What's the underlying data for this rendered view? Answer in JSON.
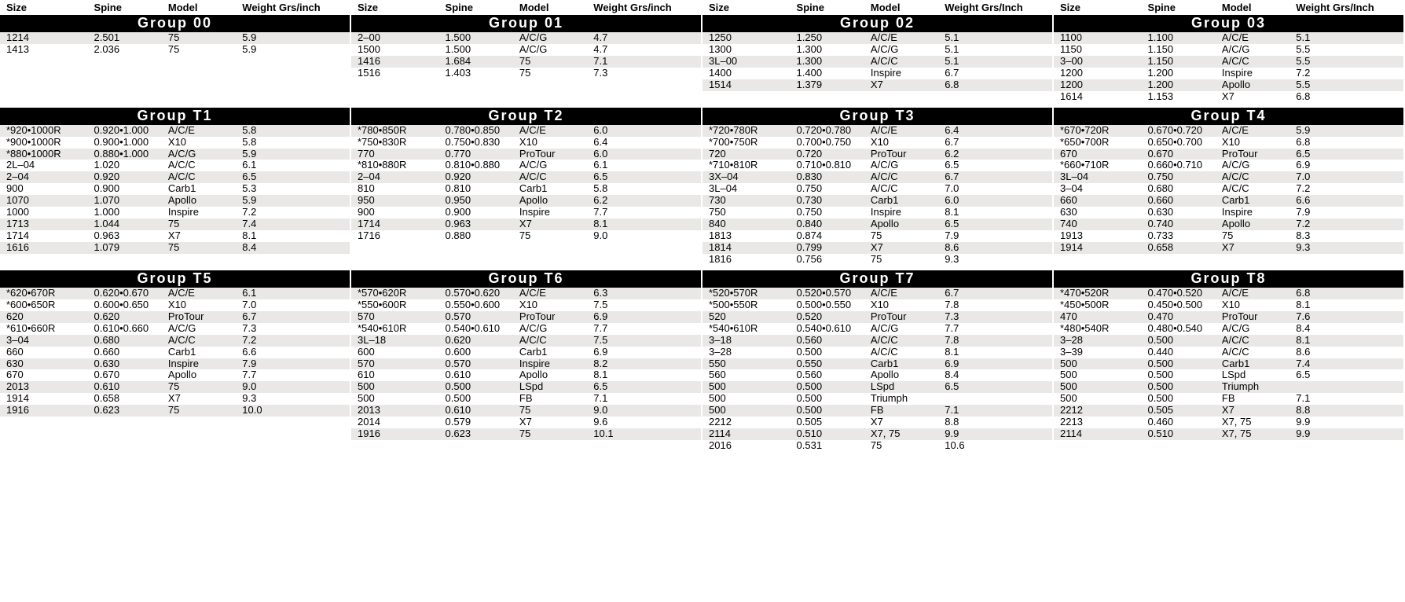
{
  "columns": [
    "Size",
    "Spine",
    "Model",
    "Weight Grs/inch"
  ],
  "columns_alt": [
    "Size",
    "Spine",
    "Model",
    "Weight Grs/Inch"
  ],
  "band1": [
    {
      "title": "Group 00",
      "rows": [
        [
          "1214",
          "2.501",
          "75",
          "5.9"
        ],
        [
          "1413",
          "2.036",
          "75",
          "5.9"
        ]
      ]
    },
    {
      "title": "Group 01",
      "rows": [
        [
          "2–00",
          "1.500",
          "A/C/G",
          "4.7"
        ],
        [
          "1500",
          "1.500",
          "A/C/G",
          "4.7"
        ],
        [
          "1416",
          "1.684",
          "75",
          "7.1"
        ],
        [
          "1516",
          "1.403",
          "75",
          "7.3"
        ]
      ]
    },
    {
      "title": "Group 02",
      "rows": [
        [
          "1250",
          "1.250",
          "A/C/E",
          "5.1"
        ],
        [
          "1300",
          "1.300",
          "A/C/G",
          "5.1"
        ],
        [
          "3L–00",
          "1.300",
          "A/C/C",
          "5.1"
        ],
        [
          "1400",
          "1.400",
          "Inspire",
          "6.7"
        ],
        [
          "1514",
          "1.379",
          "X7",
          "6.8"
        ],
        [
          "",
          "",
          "",
          ""
        ]
      ]
    },
    {
      "title": "Group 03",
      "rows": [
        [
          "1100",
          "1.100",
          "A/C/E",
          "5.1"
        ],
        [
          "1150",
          "1.150",
          "A/C/G",
          "5.5"
        ],
        [
          "3–00",
          "1.150",
          "A/C/C",
          "5.5"
        ],
        [
          "1200",
          "1.200",
          "Inspire",
          "7.2"
        ],
        [
          "1200",
          "1.200",
          "Apollo",
          "5.5"
        ],
        [
          "1614",
          "1.153",
          "X7",
          "6.8"
        ]
      ]
    }
  ],
  "band2": [
    {
      "title": "Group T1",
      "rows": [
        [
          "*920•1000R",
          "0.920•1.000",
          "A/C/E",
          "5.8"
        ],
        [
          "*900•1000R",
          "0.900•1.000",
          "X10",
          "5.8"
        ],
        [
          "*880•1000R",
          "0.880•1.000",
          "A/C/G",
          "5.9"
        ],
        [
          "2L–04",
          "1.020",
          "A/C/C",
          "6.1"
        ],
        [
          "2–04",
          "0.920",
          "A/C/C",
          "6.5"
        ],
        [
          "900",
          "0.900",
          "Carb1",
          "5.3"
        ],
        [
          "1070",
          "1.070",
          "Apollo",
          "5.9"
        ],
        [
          "1000",
          "1.000",
          "Inspire",
          "7.2"
        ],
        [
          "1713",
          "1.044",
          "75",
          "7.4"
        ],
        [
          "1714",
          "0.963",
          "X7",
          "8.1"
        ],
        [
          "1616",
          "1.079",
          "75",
          "8.4"
        ]
      ]
    },
    {
      "title": "Group T2",
      "rows": [
        [
          "*780•850R",
          "0.780•0.850",
          "A/C/E",
          "6.0"
        ],
        [
          "*750•830R",
          "0.750•0.830",
          "X10",
          "6.4"
        ],
        [
          "770",
          "0.770",
          "ProTour",
          "6.0"
        ],
        [
          "*810•880R",
          "0.810•0.880",
          "A/C/G",
          "6.1"
        ],
        [
          "2–04",
          "0.920",
          "A/C/C",
          "6.5"
        ],
        [
          "810",
          "0.810",
          "Carb1",
          "5.8"
        ],
        [
          "950",
          "0.950",
          "Apollo",
          "6.2"
        ],
        [
          "900",
          "0.900",
          "Inspire",
          "7.7"
        ],
        [
          "1714",
          "0.963",
          "X7",
          "8.1"
        ],
        [
          "1716",
          "0.880",
          "75",
          "9.0"
        ]
      ]
    },
    {
      "title": "Group T3",
      "rows": [
        [
          "*720•780R",
          "0.720•0.780",
          "A/C/E",
          "6.4"
        ],
        [
          "*700•750R",
          "0.700•0.750",
          "X10",
          "6.7"
        ],
        [
          "720",
          "0.720",
          "ProTour",
          "6.2"
        ],
        [
          "*710•810R",
          "0.710•0.810",
          "A/C/G",
          "6.5"
        ],
        [
          "3X–04",
          "0.830",
          "A/C/C",
          "6.7"
        ],
        [
          "3L–04",
          "0.750",
          "A/C/C",
          "7.0"
        ],
        [
          "730",
          "0.730",
          "Carb1",
          "6.0"
        ],
        [
          "750",
          "0.750",
          "Inspire",
          "8.1"
        ],
        [
          "840",
          "0.840",
          "Apollo",
          "6.5"
        ],
        [
          "1813",
          "0.874",
          "75",
          "7.9"
        ],
        [
          "1814",
          "0.799",
          "X7",
          "8.6"
        ],
        [
          "1816",
          "0.756",
          "75",
          "9.3"
        ]
      ]
    },
    {
      "title": "Group T4",
      "rows": [
        [
          "*670•720R",
          "0.670•0.720",
          "A/C/E",
          "5.9"
        ],
        [
          "*650•700R",
          "0.650•0.700",
          "X10",
          "6.8"
        ],
        [
          "670",
          "0.670",
          "ProTour",
          "6.5"
        ],
        [
          "*660•710R",
          "0.660•0.710",
          "A/C/G",
          "6.9"
        ],
        [
          "3L–04",
          "0.750",
          "A/C/C",
          "7.0"
        ],
        [
          "3–04",
          "0.680",
          "A/C/C",
          "7.2"
        ],
        [
          "660",
          "0.660",
          "Carb1",
          "6.6"
        ],
        [
          "630",
          "0.630",
          "Inspire",
          "7.9"
        ],
        [
          "740",
          "0.740",
          "Apollo",
          "7.2"
        ],
        [
          "1913",
          "0.733",
          "75",
          "8.3"
        ],
        [
          "1914",
          "0.658",
          "X7",
          "9.3"
        ]
      ]
    }
  ],
  "band3": [
    {
      "title": "Group T5",
      "rows": [
        [
          "*620•670R",
          "0.620•0.670",
          "A/C/E",
          "6.1"
        ],
        [
          "*600•650R",
          "0.600•0.650",
          "X10",
          "7.0"
        ],
        [
          "620",
          "0.620",
          "ProTour",
          "6.7"
        ],
        [
          "*610•660R",
          "0.610•0.660",
          "A/C/G",
          "7.3"
        ],
        [
          "3–04",
          "0.680",
          "A/C/C",
          "7.2"
        ],
        [
          "660",
          "0.660",
          "Carb1",
          "6.6"
        ],
        [
          "630",
          "0.630",
          "Inspire",
          "7.9"
        ],
        [
          "670",
          "0.670",
          "Apollo",
          "7.7"
        ],
        [
          "2013",
          "0.610",
          "75",
          "9.0"
        ],
        [
          "1914",
          "0.658",
          "X7",
          "9.3"
        ],
        [
          "1916",
          "0.623",
          "75",
          "10.0"
        ],
        [
          "",
          "",
          "",
          ""
        ]
      ]
    },
    {
      "title": "Group T6",
      "rows": [
        [
          "*570•620R",
          "0.570•0.620",
          "A/C/E",
          "6.3"
        ],
        [
          "*550•600R",
          "0.550•0.600",
          "X10",
          "7.5"
        ],
        [
          "570",
          "0.570",
          "ProTour",
          "6.9"
        ],
        [
          "*540•610R",
          "0.540•0.610",
          "A/C/G",
          "7.7"
        ],
        [
          "3L–18",
          "0.620",
          "A/C/C",
          "7.5"
        ],
        [
          "600",
          "0.600",
          "Carb1",
          "6.9"
        ],
        [
          "570",
          "0.570",
          "Inspire",
          "8.2"
        ],
        [
          "610",
          "0.610",
          "Apollo",
          "8.1"
        ],
        [
          "500",
          "0.500",
          "LSpd",
          "6.5"
        ],
        [
          "500",
          "0.500",
          "FB",
          "7.1"
        ],
        [
          "2013",
          "0.610",
          "75",
          "9.0"
        ],
        [
          "2014",
          "0.579",
          "X7",
          "9.6"
        ],
        [
          "1916",
          "0.623",
          "75",
          "10.1"
        ]
      ]
    },
    {
      "title": "Group T7",
      "rows": [
        [
          "*520•570R",
          "0.520•0.570",
          "A/C/E",
          "6.7"
        ],
        [
          "*500•550R",
          "0.500•0.550",
          "X10",
          "7.8"
        ],
        [
          "520",
          "0.520",
          "ProTour",
          "7.3"
        ],
        [
          "*540•610R",
          "0.540•0.610",
          "A/C/G",
          "7.7"
        ],
        [
          "3–18",
          "0.560",
          "A/C/C",
          "7.8"
        ],
        [
          "3–28",
          "0.500",
          "A/C/C",
          "8.1"
        ],
        [
          "550",
          "0.550",
          "Carb1",
          "6.9"
        ],
        [
          "560",
          "0.560",
          "Apollo",
          "8.4"
        ],
        [
          "500",
          "0.500",
          "LSpd",
          "6.5"
        ],
        [
          "500",
          "0.500",
          "Triumph",
          ""
        ],
        [
          "500",
          "0.500",
          "FB",
          "7.1"
        ],
        [
          "2212",
          "0.505",
          "X7",
          "8.8"
        ],
        [
          "2114",
          "0.510",
          "X7, 75",
          "9.9"
        ],
        [
          "2016",
          "0.531",
          "75",
          "10.6"
        ]
      ]
    },
    {
      "title": "Group T8",
      "rows": [
        [
          "*470•520R",
          "0.470•0.520",
          "A/C/E",
          "6.8"
        ],
        [
          "*450•500R",
          "0.450•0.500",
          "X10",
          "8.1"
        ],
        [
          "470",
          "0.470",
          "ProTour",
          "7.6"
        ],
        [
          "*480•540R",
          "0.480•0.540",
          "A/C/G",
          "8.4"
        ],
        [
          "3–28",
          "0.500",
          "A/C/C",
          "8.1"
        ],
        [
          "3–39",
          "0.440",
          "A/C/C",
          "8.6"
        ],
        [
          "500",
          "0.500",
          "Carb1",
          "7.4"
        ],
        [
          "500",
          "0.500",
          "LSpd",
          "6.5"
        ],
        [
          "500",
          "0.500",
          "Triumph",
          ""
        ],
        [
          "500",
          "0.500",
          "FB",
          "7.1"
        ],
        [
          "2212",
          "0.505",
          "X7",
          "8.8"
        ],
        [
          "2213",
          "0.460",
          "X7, 75",
          "9.9"
        ],
        [
          "2114",
          "0.510",
          "X7, 75",
          "9.9"
        ]
      ]
    }
  ]
}
